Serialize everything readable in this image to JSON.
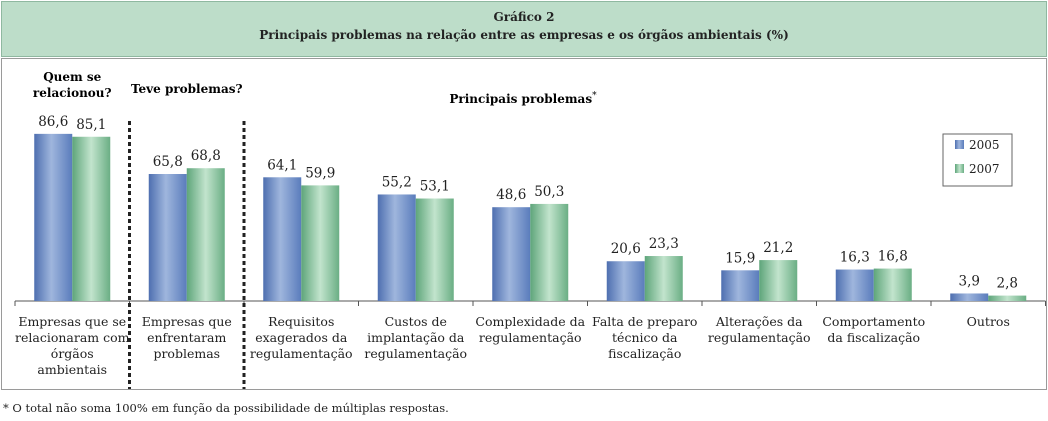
{
  "header": {
    "title": "Gráfico 2",
    "subtitle": "Principais problemas na relação entre as empresas e os órgãos ambientais (%)"
  },
  "footnote": {
    "mark": "*",
    "text": " O total não soma 100% em função da possibilidade de múltiplas respostas."
  },
  "colors": {
    "series_2005": "#6e8ec4",
    "series_2007": "#8cc4a0",
    "header_bg": "#bdddc9"
  },
  "chart_data": {
    "type": "bar",
    "title": "",
    "xlabel": "",
    "ylabel": "",
    "ylim": [
      0,
      100
    ],
    "grid": false,
    "legend_position": "right",
    "section_labels": {
      "relacionou": [
        "Quem se",
        "relacionou?"
      ],
      "teve": "Teve problemas?",
      "principais": "Principais problemas",
      "principais_mark": "*"
    },
    "categories": [
      [
        "Empresas que se",
        "relacionaram com",
        "órgãos",
        "ambientais"
      ],
      [
        "Empresas que",
        "enfrentaram",
        "problemas"
      ],
      [
        "Requisitos",
        "exagerados da",
        "regulamentação"
      ],
      [
        "Custos de",
        "implantação da",
        "regulamentação"
      ],
      [
        "Complexidade da",
        "regulamentação"
      ],
      [
        "Falta de preparo",
        "técnico da",
        "fiscalização"
      ],
      [
        "Alterações da",
        "regulamentação"
      ],
      [
        "Comportamento",
        "da fiscalização"
      ],
      [
        "Outros"
      ]
    ],
    "series": [
      {
        "name": "2005",
        "values": [
          86.6,
          65.8,
          64.1,
          55.2,
          48.6,
          20.6,
          15.9,
          16.3,
          3.9
        ],
        "labels": [
          "86,6",
          "65,8",
          "64,1",
          "55,2",
          "48,6",
          "20,6",
          "15,9",
          "16,3",
          "3,9"
        ]
      },
      {
        "name": "2007",
        "values": [
          85.1,
          68.8,
          59.9,
          53.1,
          50.3,
          23.3,
          21.2,
          16.8,
          2.8
        ],
        "labels": [
          "85,1",
          "68,8",
          "59,9",
          "53,1",
          "50,3",
          "23,3",
          "21,2",
          "16,8",
          "2,8"
        ]
      }
    ]
  }
}
